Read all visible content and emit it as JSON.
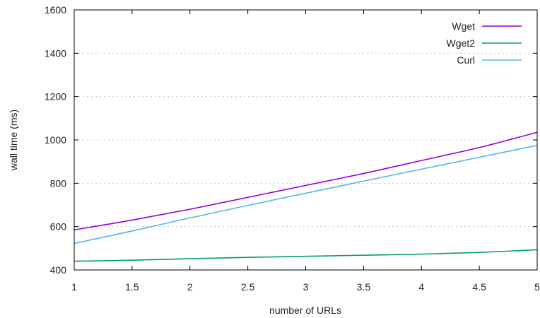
{
  "chart_data": {
    "type": "line",
    "title": "",
    "xlabel": "number of URLs",
    "ylabel": "wall time (ms)",
    "xlim": [
      1,
      5
    ],
    "ylim": [
      400,
      1600
    ],
    "x_ticks": [
      1,
      1.5,
      2,
      2.5,
      3,
      3.5,
      4,
      4.5,
      5
    ],
    "y_ticks": [
      400,
      600,
      800,
      1000,
      1200,
      1400,
      1600
    ],
    "grid": "horizontal dashed",
    "legend_position": "top-right",
    "x": [
      1,
      1.5,
      2,
      2.5,
      3,
      3.5,
      4,
      4.5,
      5
    ],
    "series": [
      {
        "name": "Wget",
        "color": "#9400d3",
        "values": [
          585,
          630,
          680,
          735,
          790,
          845,
          905,
          965,
          1035
        ]
      },
      {
        "name": "Wget2",
        "color": "#009e73",
        "values": [
          440,
          445,
          452,
          458,
          463,
          468,
          473,
          481,
          493
        ]
      },
      {
        "name": "Curl",
        "color": "#56b4e9",
        "values": [
          522,
          580,
          640,
          698,
          754,
          810,
          865,
          920,
          975
        ]
      }
    ]
  }
}
